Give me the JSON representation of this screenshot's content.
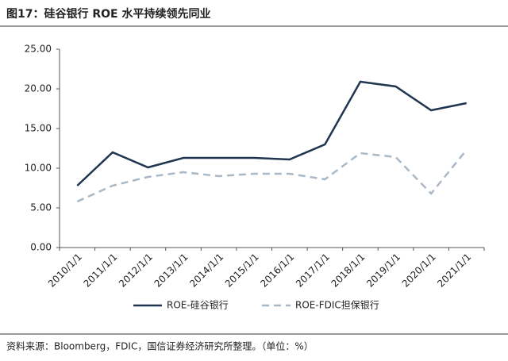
{
  "chart_data": {
    "type": "line",
    "title": "图17：硅谷银行 ROE 水平持续领先同业",
    "source": "资料来源：Bloomberg，FDIC，国信证券经济研究所整理。（单位：%）",
    "categories": [
      "2010/1/1",
      "2011/1/1",
      "2012/1/1",
      "2013/1/1",
      "2014/1/1",
      "2015/1/1",
      "2016/1/1",
      "2017/1/1",
      "2018/1/1",
      "2019/1/1",
      "2020/1/1",
      "2021/1/1"
    ],
    "series": [
      {
        "name": "ROE-硅谷银行",
        "color": "#1f3550",
        "dashed": false,
        "values": [
          7.8,
          12.0,
          10.1,
          11.3,
          11.3,
          11.3,
          11.1,
          13.0,
          20.9,
          20.3,
          17.3,
          18.2
        ]
      },
      {
        "name": "ROE-FDIC担保银行",
        "color": "#a9b8c6",
        "dashed": true,
        "values": [
          5.8,
          7.8,
          8.9,
          9.5,
          9.0,
          9.3,
          9.3,
          8.6,
          11.9,
          11.4,
          6.8,
          12.3
        ]
      }
    ],
    "ylim": [
      0,
      25
    ],
    "yticks": [
      {
        "value": 0,
        "label": "0.00"
      },
      {
        "value": 5,
        "label": "5.00"
      },
      {
        "value": 10,
        "label": "10.00"
      },
      {
        "value": 15,
        "label": "15.00"
      },
      {
        "value": 20,
        "label": "20.00"
      },
      {
        "value": 25,
        "label": "25.00"
      }
    ],
    "grid": false,
    "legend": "bottom"
  }
}
